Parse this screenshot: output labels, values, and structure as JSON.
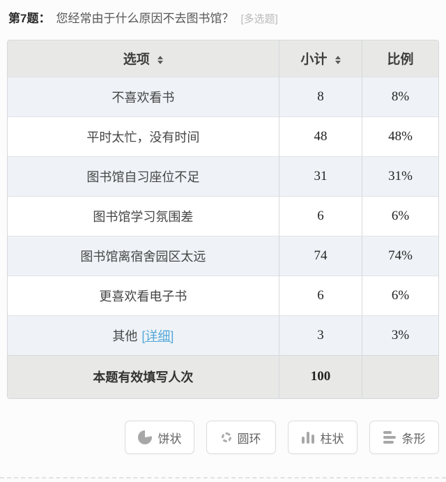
{
  "question": {
    "number_label": "第7题：",
    "text": "您经常由于什么原因不去图书馆？",
    "type_tag": "[多选题]"
  },
  "table": {
    "headers": {
      "option": "选项",
      "subtotal": "小计",
      "ratio": "比例"
    },
    "rows": [
      {
        "option": "不喜欢看书",
        "subtotal": "8",
        "ratio": "8%"
      },
      {
        "option": "平时太忙，没有时间",
        "subtotal": "48",
        "ratio": "48%"
      },
      {
        "option": "图书馆自习座位不足",
        "subtotal": "31",
        "ratio": "31%"
      },
      {
        "option": "图书馆学习氛围差",
        "subtotal": "6",
        "ratio": "6%"
      },
      {
        "option": "图书馆离宿舍园区太远",
        "subtotal": "74",
        "ratio": "74%"
      },
      {
        "option": "更喜欢看电子书",
        "subtotal": "6",
        "ratio": "6%"
      },
      {
        "option": "其他",
        "detail_link": "[详细]",
        "subtotal": "3",
        "ratio": "3%"
      }
    ],
    "footer": {
      "label": "本题有效填写人次",
      "subtotal": "100",
      "ratio": ""
    }
  },
  "chart_buttons": [
    {
      "icon": "pie-icon",
      "label": "饼状"
    },
    {
      "icon": "donut-icon",
      "label": "圆环"
    },
    {
      "icon": "column-icon",
      "label": "柱状"
    },
    {
      "icon": "bar-icon",
      "label": "条形"
    }
  ],
  "colors": {
    "header_bg": "#e8e8e7",
    "odd_row_bg": "#eff3f7",
    "link": "#55a8d9",
    "border": "#d5d9dc",
    "icon_gray": "#a7a7a7"
  }
}
